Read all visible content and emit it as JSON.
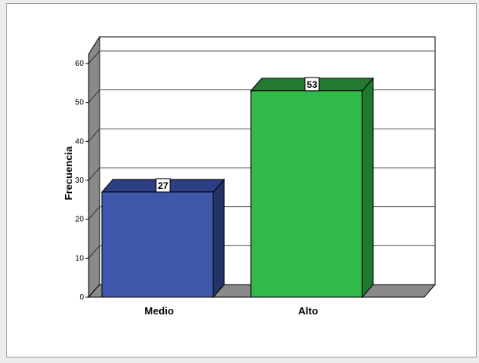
{
  "chart_data": {
    "type": "bar",
    "categories": [
      "Medio",
      "Alto"
    ],
    "values": [
      27,
      53
    ],
    "data_labels": [
      "27",
      "53"
    ],
    "xlabel": "",
    "ylabel": "Frecuencia",
    "ylim": [
      0,
      60
    ],
    "yticks": [
      "0",
      "10",
      "20",
      "30",
      "40",
      "50",
      "60"
    ],
    "grid": true,
    "legend": "none",
    "style": "3d",
    "bar_colors": [
      "#3f57ab",
      "#2fba4a"
    ],
    "bar_side_colors": [
      "#243366",
      "#1d7a2e"
    ],
    "bar_top_colors": [
      "#2c3f84",
      "#237a33"
    ]
  }
}
